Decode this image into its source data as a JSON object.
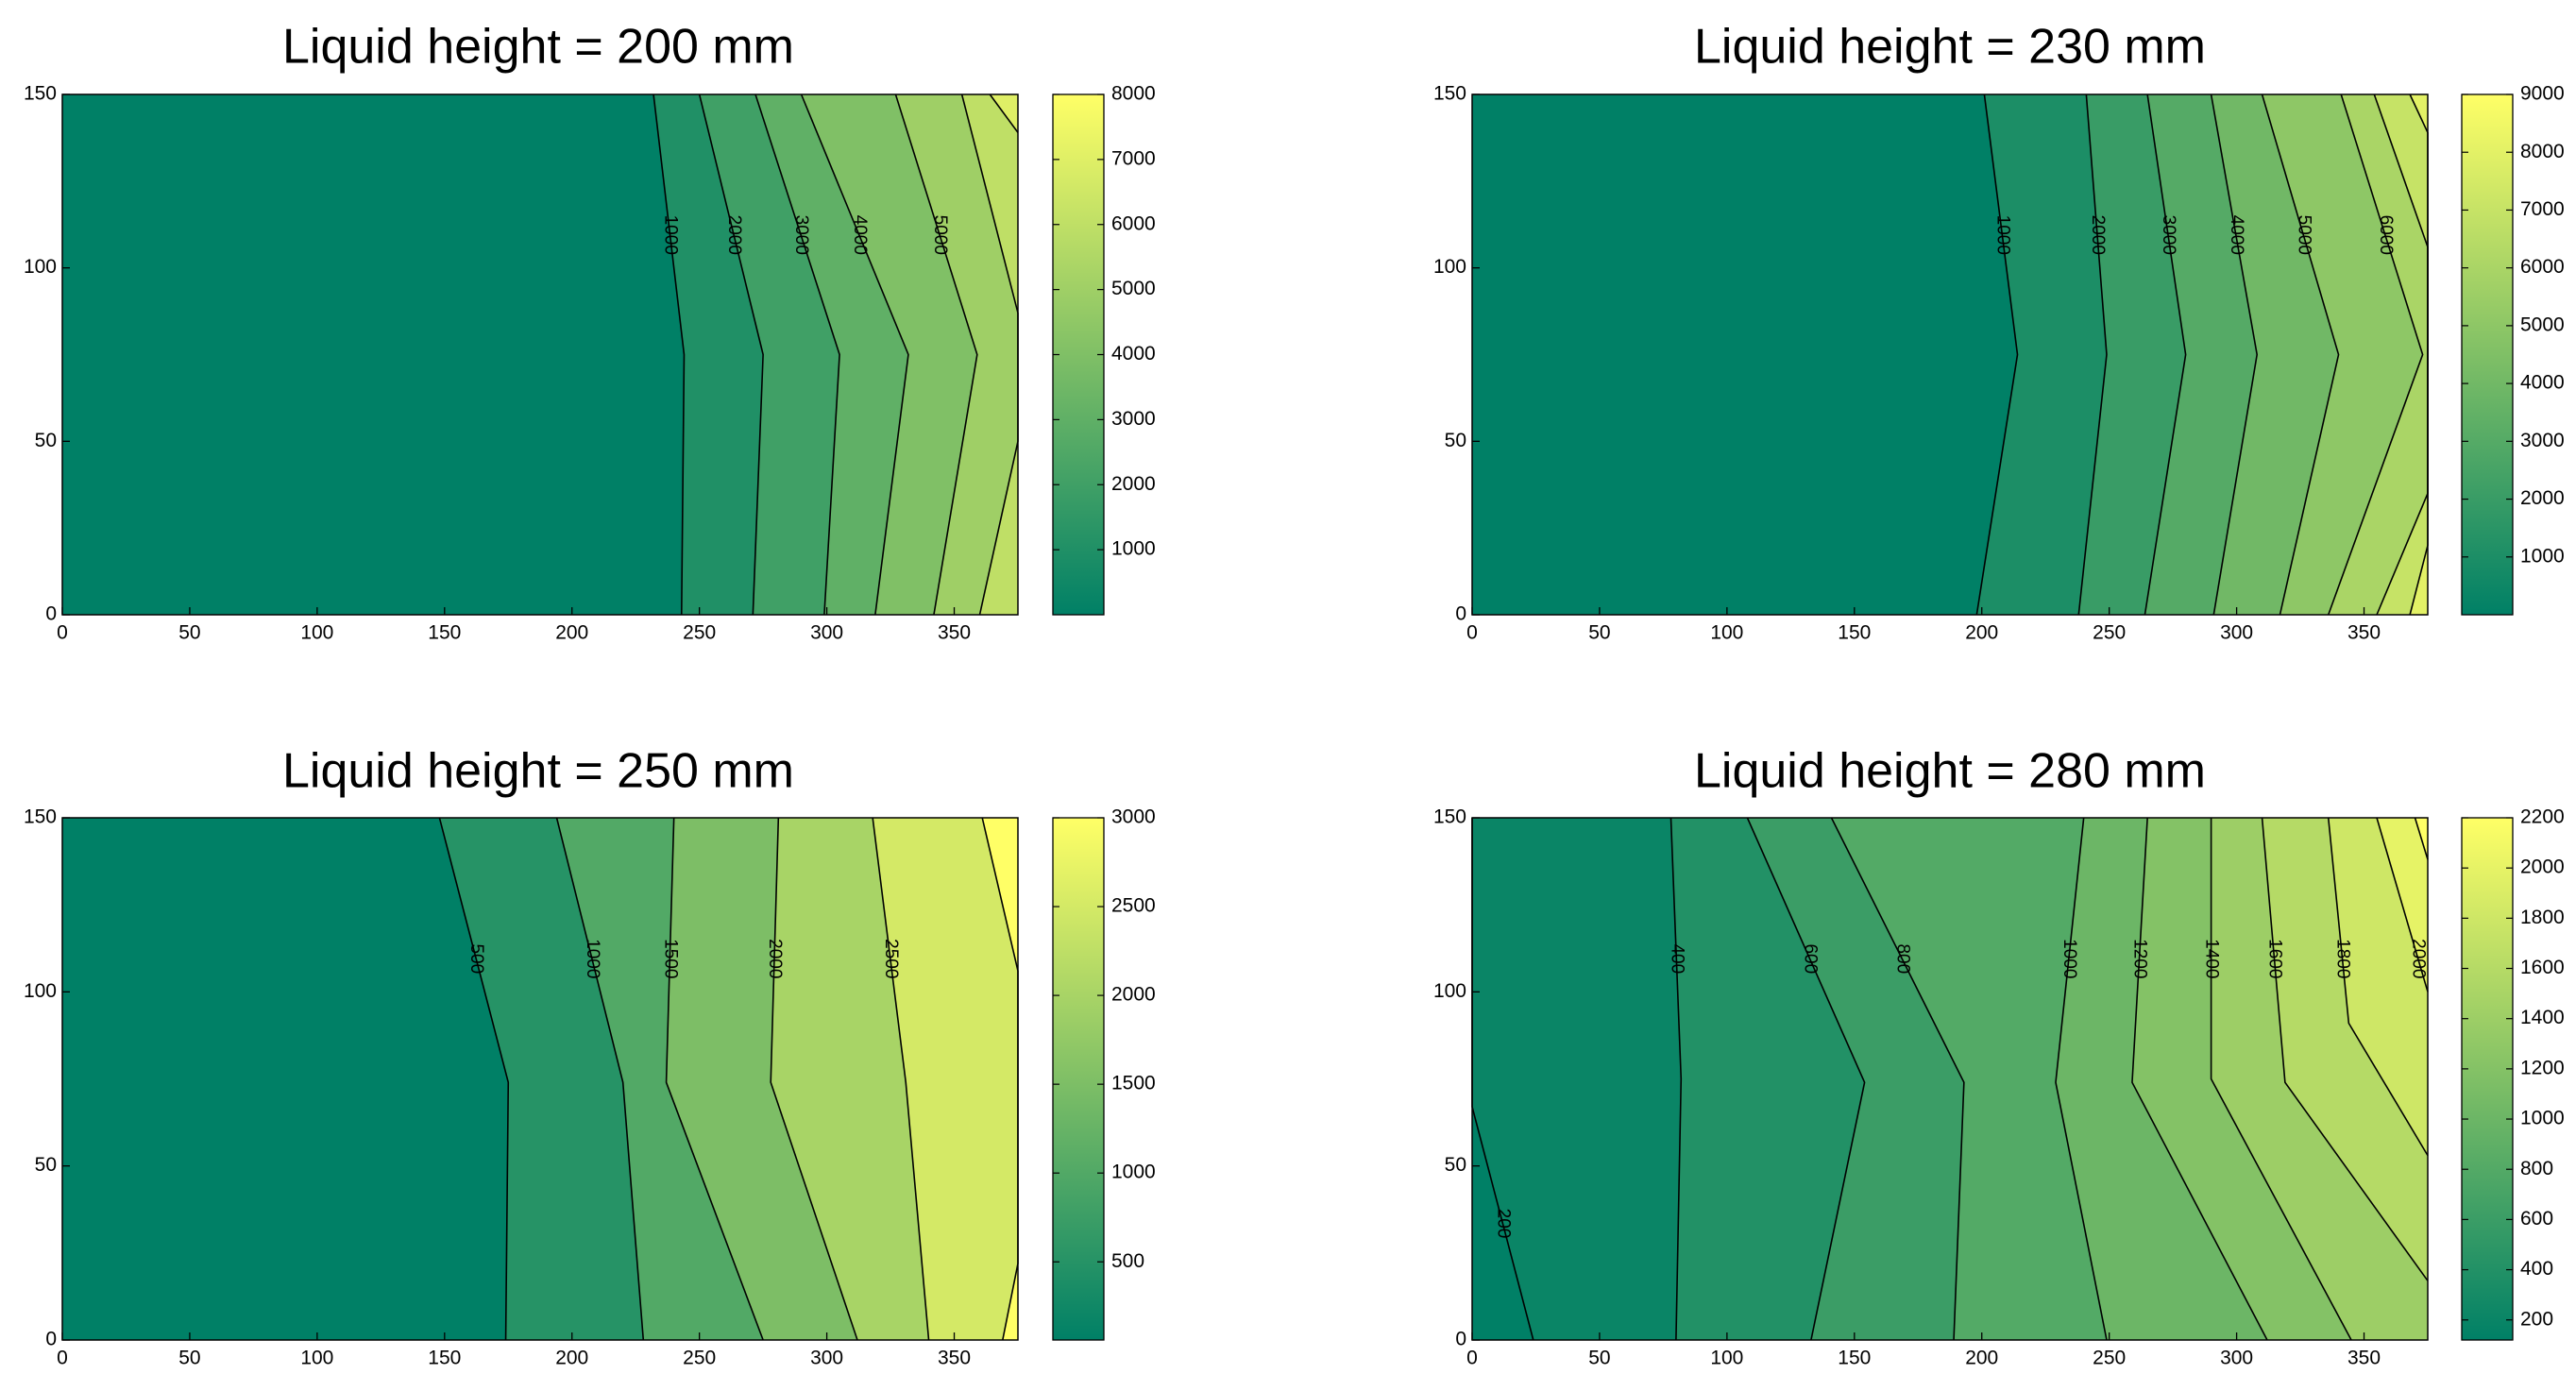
{
  "chart_data": [
    {
      "type": "contour",
      "title": "Liquid height = 200 mm",
      "xlim": [
        0,
        375
      ],
      "ylim": [
        0,
        150
      ],
      "xticks": [
        0,
        50,
        100,
        150,
        200,
        250,
        300,
        350
      ],
      "yticks": [
        0,
        50,
        100,
        150
      ],
      "clim": [
        0,
        8000
      ],
      "cticks": [
        1000,
        2000,
        3000,
        4000,
        5000,
        6000,
        7000,
        8000
      ],
      "colormap": [
        "#008066",
        "#ffff66"
      ],
      "contours": [
        {
          "level": 1000,
          "labeled": true,
          "line": [
            [
              232,
              150
            ],
            [
              244,
              75
            ],
            [
              243,
              0
            ]
          ]
        },
        {
          "level": 2000,
          "labeled": true,
          "line": [
            [
              250,
              150
            ],
            [
              275,
              75
            ],
            [
              271,
              0
            ]
          ]
        },
        {
          "level": 3000,
          "labeled": true,
          "line": [
            [
              272,
              150
            ],
            [
              305,
              75
            ],
            [
              299,
              0
            ]
          ]
        },
        {
          "level": 4000,
          "labeled": true,
          "line": [
            [
              290,
              150
            ],
            [
              332,
              75
            ],
            [
              319,
              0
            ]
          ]
        },
        {
          "level": 5000,
          "labeled": true,
          "line": [
            [
              327,
              150
            ],
            [
              359,
              75
            ],
            [
              342,
              0
            ]
          ]
        },
        {
          "level": 6000,
          "labeled": false,
          "line": [
            [
              353,
              150
            ],
            [
              375,
              87
            ],
            [
              375,
              50
            ],
            [
              360,
              0
            ]
          ]
        },
        {
          "level": 7000,
          "labeled": false,
          "line": [
            [
              364,
              150
            ],
            [
              375,
              139
            ]
          ]
        }
      ]
    },
    {
      "type": "contour",
      "title": "Liquid height = 230 mm",
      "xlim": [
        0,
        375
      ],
      "ylim": [
        0,
        150
      ],
      "xticks": [
        0,
        50,
        100,
        150,
        200,
        250,
        300,
        350
      ],
      "yticks": [
        0,
        50,
        100,
        150
      ],
      "clim": [
        0,
        9000
      ],
      "cticks": [
        1000,
        2000,
        3000,
        4000,
        5000,
        6000,
        7000,
        8000,
        9000
      ],
      "colormap": [
        "#008066",
        "#ffff66"
      ],
      "contours": [
        {
          "level": 1000,
          "labeled": true,
          "line": [
            [
              201,
              150
            ],
            [
              214,
              75
            ],
            [
              198,
              0
            ]
          ]
        },
        {
          "level": 2000,
          "labeled": true,
          "line": [
            [
              241,
              150
            ],
            [
              249,
              75
            ],
            [
              238,
              0
            ]
          ]
        },
        {
          "level": 3000,
          "labeled": true,
          "line": [
            [
              265,
              150
            ],
            [
              280,
              75
            ],
            [
              264,
              0
            ]
          ]
        },
        {
          "level": 4000,
          "labeled": true,
          "line": [
            [
              290,
              150
            ],
            [
              308,
              75
            ],
            [
              291,
              0
            ]
          ]
        },
        {
          "level": 5000,
          "labeled": true,
          "line": [
            [
              310,
              150
            ],
            [
              340,
              75
            ],
            [
              317,
              0
            ]
          ]
        },
        {
          "level": 6000,
          "labeled": true,
          "line": [
            [
              341,
              150
            ],
            [
              373,
              75
            ],
            [
              336,
              0
            ]
          ]
        },
        {
          "level": 7000,
          "labeled": false,
          "line": [
            [
              354,
              150
            ],
            [
              375,
              106
            ],
            [
              375,
              35
            ],
            [
              355,
              0
            ]
          ]
        },
        {
          "level": 8000,
          "labeled": false,
          "line": [
            [
              368,
              150
            ],
            [
              375,
              139
            ],
            [
              375,
              20
            ],
            [
              368,
              0
            ]
          ]
        }
      ]
    },
    {
      "type": "contour",
      "title": "Liquid height = 250 mm",
      "xlim": [
        0,
        375
      ],
      "ylim": [
        0,
        150
      ],
      "xticks": [
        0,
        50,
        100,
        150,
        200,
        250,
        300,
        350
      ],
      "yticks": [
        0,
        50,
        100,
        150
      ],
      "clim": [
        60,
        3000
      ],
      "cticks": [
        500,
        1000,
        1500,
        2000,
        2500,
        3000
      ],
      "colormap": [
        "#008066",
        "#ffff66"
      ],
      "contours": [
        {
          "level": 500,
          "labeled": true,
          "line": [
            [
              148,
              150
            ],
            [
              175,
              74
            ],
            [
              174,
              0
            ]
          ]
        },
        {
          "level": 1000,
          "labeled": true,
          "line": [
            [
              194,
              150
            ],
            [
              220,
              74
            ],
            [
              228,
              0
            ]
          ]
        },
        {
          "level": 1500,
          "labeled": true,
          "line": [
            [
              240,
              150
            ],
            [
              237,
              74
            ],
            [
              275,
              0
            ]
          ]
        },
        {
          "level": 2000,
          "labeled": true,
          "line": [
            [
              281,
              150
            ],
            [
              278,
              74
            ],
            [
              312,
              0
            ]
          ]
        },
        {
          "level": 2500,
          "labeled": true,
          "line": [
            [
              318,
              150
            ],
            [
              331,
              74
            ],
            [
              340,
              0
            ]
          ]
        },
        {
          "level": 3000,
          "labeled": false,
          "line": [
            [
              361,
              150
            ],
            [
              375,
              106
            ],
            [
              375,
              22
            ],
            [
              369,
              0
            ]
          ]
        }
      ]
    },
    {
      "type": "contour",
      "title": "Liquid height = 280 mm",
      "xlim": [
        0,
        375
      ],
      "ylim": [
        0,
        150
      ],
      "xticks": [
        0,
        50,
        100,
        150,
        200,
        250,
        300,
        350
      ],
      "yticks": [
        0,
        50,
        100,
        150
      ],
      "clim": [
        120,
        2200
      ],
      "cticks": [
        200,
        400,
        600,
        800,
        1000,
        1200,
        1400,
        1600,
        1800,
        2000,
        2200
      ],
      "colormap": [
        "#008066",
        "#ffff66"
      ],
      "contours": [
        {
          "level": 200,
          "labeled": true,
          "line": [
            [
              0,
              150
            ],
            [
              0,
              67
            ],
            [
              24,
              0
            ]
          ]
        },
        {
          "level": 400,
          "labeled": true,
          "line": [
            [
              78,
              150
            ],
            [
              82,
              75
            ],
            [
              80,
              0
            ]
          ]
        },
        {
          "level": 600,
          "labeled": true,
          "line": [
            [
              108,
              150
            ],
            [
              154,
              74
            ],
            [
              133,
              0
            ]
          ]
        },
        {
          "level": 800,
          "labeled": true,
          "line": [
            [
              141,
              150
            ],
            [
              193,
              74
            ],
            [
              189,
              0
            ]
          ]
        },
        {
          "level": 1000,
          "labeled": true,
          "line": [
            [
              240,
              150
            ],
            [
              229,
              74
            ],
            [
              249,
              0
            ]
          ]
        },
        {
          "level": 1200,
          "labeled": true,
          "line": [
            [
              265,
              150
            ],
            [
              259,
              74
            ],
            [
              312,
              0
            ]
          ]
        },
        {
          "level": 1400,
          "labeled": true,
          "line": [
            [
              290,
              150
            ],
            [
              290,
              75
            ],
            [
              345,
              0
            ]
          ]
        },
        {
          "level": 1600,
          "labeled": true,
          "line": [
            [
              310,
              150
            ],
            [
              319,
              74
            ],
            [
              375,
              17
            ]
          ]
        },
        {
          "level": 1800,
          "labeled": true,
          "line": [
            [
              336,
              150
            ],
            [
              344,
              91
            ],
            [
              375,
              53
            ]
          ]
        },
        {
          "level": 2000,
          "labeled": true,
          "line": [
            [
              355,
              150
            ],
            [
              375,
              100
            ]
          ]
        },
        {
          "level": 2200,
          "labeled": false,
          "line": [
            [
              370,
              150
            ],
            [
              375,
              138
            ]
          ]
        }
      ]
    }
  ]
}
